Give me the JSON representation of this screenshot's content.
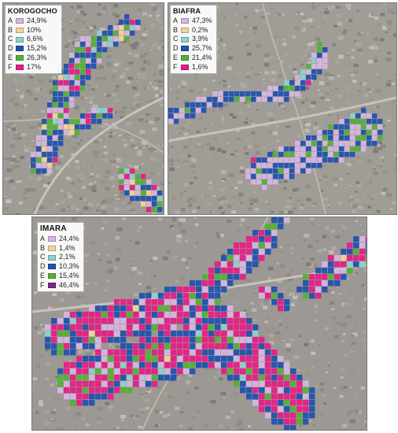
{
  "colors": {
    "A": "#d7b6e3",
    "B": "#f3d49a",
    "C": "#8ed2cc",
    "D": "#1f51b0",
    "E": "#52b136",
    "F": "#e71c86",
    "F_imara": "#7a2b82"
  },
  "classes": [
    "A",
    "B",
    "C",
    "D",
    "E",
    "F"
  ],
  "panels": [
    {
      "id": "korogocho",
      "title": "KOROGOCHO",
      "values": [
        "24,9%",
        "10%",
        "6,6%",
        "15,2%",
        "26,3%",
        "17%"
      ]
    },
    {
      "id": "biafra",
      "title": "BIAFRA",
      "values": [
        "47,3%",
        "0,2%",
        "3,9%",
        "25,7%",
        "21,4%",
        "1,6%"
      ]
    },
    {
      "id": "imara",
      "title": "IMARA",
      "values": [
        "24,4%",
        "1,4%",
        "2,1%",
        "10,3%",
        "15,4%",
        "46,4%"
      ]
    }
  ]
}
